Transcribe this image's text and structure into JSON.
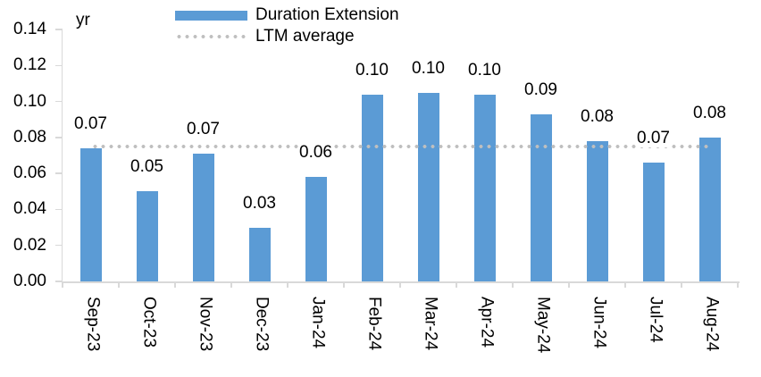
{
  "chart_data": {
    "type": "bar",
    "title": "",
    "unit_label": "yr",
    "categories": [
      "Sep-23",
      "Oct-23",
      "Nov-23",
      "Dec-23",
      "Jan-24",
      "Feb-24",
      "Mar-24",
      "Apr-24",
      "May-24",
      "Jun-24",
      "Jul-24",
      "Aug-24"
    ],
    "series": [
      {
        "name": "Duration Extension",
        "type": "bar",
        "color": "#5B9BD5",
        "values": [
          0.074,
          0.05,
          0.071,
          0.03,
          0.058,
          0.104,
          0.105,
          0.104,
          0.093,
          0.078,
          0.066,
          0.08
        ],
        "data_labels": [
          "0.07",
          "0.05",
          "0.07",
          "0.03",
          "0.06",
          "0.10",
          "0.10",
          "0.10",
          "0.09",
          "0.08",
          "0.07",
          "0.08"
        ]
      },
      {
        "name": "LTM average",
        "type": "line",
        "line_style": "dotted",
        "color": "#BFBFBF",
        "value": 0.075
      }
    ],
    "y_axis": {
      "min": 0,
      "max": 0.14,
      "step": 0.02,
      "tick_labels": [
        "0.00",
        "0.02",
        "0.04",
        "0.06",
        "0.08",
        "0.10",
        "0.12",
        "0.14"
      ]
    },
    "x_axis": {
      "tick_labels_rotated_deg": 90
    },
    "legend": {
      "position": "top",
      "entries": [
        "Duration Extension",
        "LTM average"
      ]
    },
    "colors": {
      "axis": "#D9D9D9",
      "text": "#000000",
      "background": "#FFFFFF"
    },
    "grid": false
  }
}
